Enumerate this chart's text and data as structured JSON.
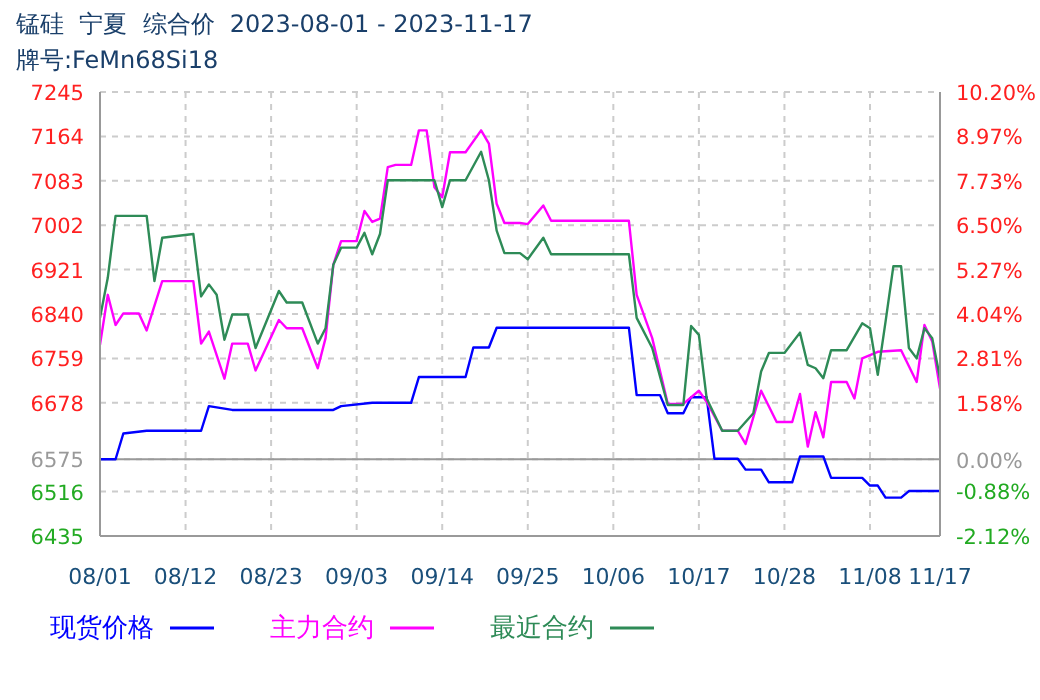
{
  "chart_data": {
    "type": "line",
    "title": "锰硅  宁夏  综合价  2023-08-01 - 2023-11-17",
    "subtitle": "牌号:FeMn68Si18",
    "xlim": [
      "2023-08-01",
      "2023-11-17"
    ],
    "xticks": [
      {
        "value": "2023-08-01",
        "label": "08/01"
      },
      {
        "value": "2023-08-12",
        "label": "08/12"
      },
      {
        "value": "2023-08-23",
        "label": "08/23"
      },
      {
        "value": "2023-09-03",
        "label": "09/03"
      },
      {
        "value": "2023-09-14",
        "label": "09/14"
      },
      {
        "value": "2023-09-25",
        "label": "09/25"
      },
      {
        "value": "2023-10-06",
        "label": "10/06"
      },
      {
        "value": "2023-10-17",
        "label": "10/17"
      },
      {
        "value": "2023-10-28",
        "label": "10/28"
      },
      {
        "value": "2023-11-08",
        "label": "11/08"
      },
      {
        "value": "2023-11-17",
        "label": "11/17"
      }
    ],
    "ylim": [
      6435,
      7245
    ],
    "yticks": [
      6435,
      6516,
      6575,
      6678,
      6759,
      6840,
      6921,
      7002,
      7083,
      7164,
      7245
    ],
    "y2lim": [
      -2.12,
      10.2
    ],
    "y2ticks": [
      {
        "value": -2.12,
        "label": "-2.12%"
      },
      {
        "value": -0.88,
        "label": "-0.88%"
      },
      {
        "value": 0,
        "label": "0.00%"
      },
      {
        "value": 1.58,
        "label": "1.58%"
      },
      {
        "value": 2.81,
        "label": "2.81%"
      },
      {
        "value": 4.04,
        "label": "4.04%"
      },
      {
        "value": 5.27,
        "label": "5.27%"
      },
      {
        "value": 6.5,
        "label": "6.50%"
      },
      {
        "value": 7.73,
        "label": "7.73%"
      },
      {
        "value": 8.97,
        "label": "8.97%"
      },
      {
        "value": 10.2,
        "label": "10.20%"
      }
    ],
    "ref_lines": [
      {
        "axis": "y",
        "value": 6575,
        "color": "#999999"
      }
    ],
    "grid": true,
    "legend": "bottom",
    "marker": "none",
    "line_style": "solid",
    "series": [
      {
        "name": "现货价格",
        "color": "#0000ff",
        "x": [
          "2023-08-01",
          "2023-08-03",
          "2023-08-04",
          "2023-08-07",
          "2023-08-14",
          "2023-08-15",
          "2023-08-18",
          "2023-08-31",
          "2023-09-01",
          "2023-09-05",
          "2023-09-10",
          "2023-09-11",
          "2023-09-17",
          "2023-09-18",
          "2023-09-20",
          "2023-09-21",
          "2023-10-08",
          "2023-10-09",
          "2023-10-12",
          "2023-10-13",
          "2023-10-15",
          "2023-10-16",
          "2023-10-18",
          "2023-10-19",
          "2023-10-22",
          "2023-10-23",
          "2023-10-25",
          "2023-10-26",
          "2023-10-29",
          "2023-10-30",
          "2023-11-02",
          "2023-11-03",
          "2023-11-07",
          "2023-11-08",
          "2023-11-09",
          "2023-11-10",
          "2023-11-12",
          "2023-11-13",
          "2023-11-17"
        ],
        "values": [
          6575,
          6575,
          6622,
          6627,
          6627,
          6672,
          6665,
          6665,
          6672,
          6678,
          6678,
          6725,
          6725,
          6779,
          6779,
          6815,
          6815,
          6692,
          6692,
          6659,
          6659,
          6688,
          6688,
          6576,
          6576,
          6556,
          6556,
          6533,
          6533,
          6580,
          6580,
          6541,
          6541,
          6527,
          6527,
          6505,
          6505,
          6517,
          6517
        ]
      },
      {
        "name": "主力合约",
        "color": "#ff00ff",
        "x": [
          "2023-08-01",
          "2023-08-02",
          "2023-08-03",
          "2023-08-04",
          "2023-08-06",
          "2023-08-07",
          "2023-08-09",
          "2023-08-13",
          "2023-08-14",
          "2023-08-15",
          "2023-08-17",
          "2023-08-18",
          "2023-08-20",
          "2023-08-21",
          "2023-08-24",
          "2023-08-25",
          "2023-08-27",
          "2023-08-29",
          "2023-08-30",
          "2023-08-31",
          "2023-09-01",
          "2023-09-03",
          "2023-09-04",
          "2023-09-05",
          "2023-09-06",
          "2023-09-07",
          "2023-09-08",
          "2023-09-10",
          "2023-09-11",
          "2023-09-12",
          "2023-09-13",
          "2023-09-14",
          "2023-09-15",
          "2023-09-17",
          "2023-09-19",
          "2023-09-20",
          "2023-09-21",
          "2023-09-22",
          "2023-09-24",
          "2023-09-25",
          "2023-09-27",
          "2023-09-28",
          "2023-10-08",
          "2023-10-09",
          "2023-10-11",
          "2023-10-13",
          "2023-10-15",
          "2023-10-17",
          "2023-10-18",
          "2023-10-20",
          "2023-10-22",
          "2023-10-23",
          "2023-10-25",
          "2023-10-27",
          "2023-10-29",
          "2023-10-30",
          "2023-10-31",
          "2023-11-01",
          "2023-11-02",
          "2023-11-03",
          "2023-11-05",
          "2023-11-06",
          "2023-11-07",
          "2023-11-09",
          "2023-11-12",
          "2023-11-14",
          "2023-11-15",
          "2023-11-16",
          "2023-11-17"
        ],
        "values": [
          6784,
          6875,
          6820,
          6841,
          6841,
          6810,
          6900,
          6900,
          6786,
          6808,
          6722,
          6786,
          6786,
          6737,
          6829,
          6814,
          6814,
          6741,
          6796,
          6930,
          6973,
          6973,
          7028,
          7008,
          7014,
          7108,
          7112,
          7112,
          7175,
          7175,
          7071,
          7053,
          7135,
          7135,
          7175,
          7151,
          7041,
          7006,
          7006,
          7004,
          7038,
          7010,
          7010,
          6875,
          6796,
          6676,
          6676,
          6700,
          6680,
          6627,
          6627,
          6603,
          6700,
          6643,
          6643,
          6694,
          6598,
          6661,
          6615,
          6716,
          6716,
          6686,
          6759,
          6771,
          6774,
          6716,
          6820,
          6790,
          6704
        ]
      },
      {
        "name": "最近合约",
        "color": "#2e8b57",
        "x": [
          "2023-08-01",
          "2023-08-02",
          "2023-08-03",
          "2023-08-07",
          "2023-08-08",
          "2023-08-09",
          "2023-08-13",
          "2023-08-14",
          "2023-08-15",
          "2023-08-16",
          "2023-08-17",
          "2023-08-18",
          "2023-08-20",
          "2023-08-21",
          "2023-08-24",
          "2023-08-25",
          "2023-08-27",
          "2023-08-29",
          "2023-08-30",
          "2023-08-31",
          "2023-09-01",
          "2023-09-03",
          "2023-09-04",
          "2023-09-05",
          "2023-09-06",
          "2023-09-07",
          "2023-09-13",
          "2023-09-14",
          "2023-09-15",
          "2023-09-17",
          "2023-09-19",
          "2023-09-20",
          "2023-09-21",
          "2023-09-22",
          "2023-09-24",
          "2023-09-25",
          "2023-09-27",
          "2023-09-28",
          "2023-10-08",
          "2023-10-09",
          "2023-10-11",
          "2023-10-13",
          "2023-10-15",
          "2023-10-16",
          "2023-10-17",
          "2023-10-18",
          "2023-10-20",
          "2023-10-22",
          "2023-10-24",
          "2023-10-25",
          "2023-10-26",
          "2023-10-28",
          "2023-10-30",
          "2023-10-31",
          "2023-11-01",
          "2023-11-02",
          "2023-11-03",
          "2023-11-05",
          "2023-11-07",
          "2023-11-08",
          "2023-11-09",
          "2023-11-10",
          "2023-11-11",
          "2023-11-12",
          "2023-11-13",
          "2023-11-14",
          "2023-11-15",
          "2023-11-16",
          "2023-11-17"
        ],
        "values": [
          6833,
          6906,
          7019,
          7019,
          6900,
          6979,
          6986,
          6872,
          6894,
          6875,
          6793,
          6839,
          6839,
          6778,
          6882,
          6861,
          6861,
          6786,
          6814,
          6930,
          6961,
          6961,
          6988,
          6949,
          6986,
          7084,
          7084,
          7035,
          7084,
          7084,
          7136,
          7084,
          6992,
          6951,
          6951,
          6940,
          6979,
          6949,
          6949,
          6833,
          6778,
          6674,
          6674,
          6818,
          6802,
          6686,
          6627,
          6627,
          6659,
          6735,
          6769,
          6769,
          6806,
          6747,
          6741,
          6723,
          6774,
          6774,
          6823,
          6814,
          6729,
          6826,
          6927,
          6927,
          6778,
          6759,
          6814,
          6796,
          6723
        ]
      }
    ]
  }
}
